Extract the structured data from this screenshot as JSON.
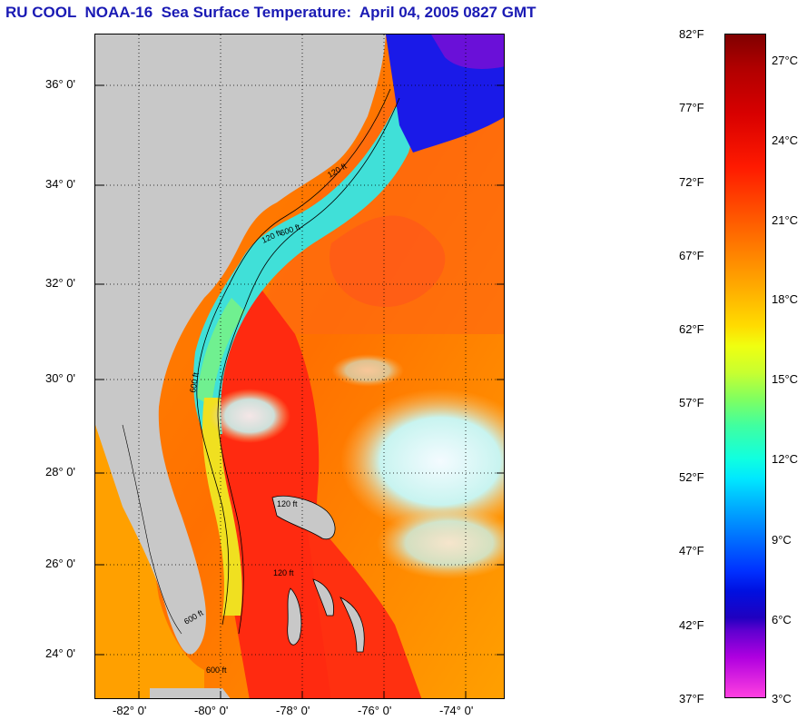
{
  "title": "RU COOL  NOAA-16  Sea Surface Temperature:  April 04, 2005 0827 GMT",
  "lat_labels": [
    "36° 0'",
    "34° 0'",
    "32° 0'",
    "30° 0'",
    "28° 0'",
    "26° 0'",
    "24° 0'"
  ],
  "lon_labels": [
    "-82° 0'",
    "-80° 0'",
    "-78° 0'",
    "-76° 0'",
    "-74° 0'"
  ],
  "contour_labels": [
    "120 ft",
    "600 ft",
    "120 ft",
    "600 ft",
    "120 ft",
    "600 ft",
    "600 ft",
    "120 ft"
  ],
  "colorbar": {
    "fahrenheit": [
      "82°F",
      "77°F",
      "72°F",
      "67°F",
      "62°F",
      "57°F",
      "52°F",
      "47°F",
      "42°F",
      "37°F"
    ],
    "celsius": [
      "27°C",
      "24°C",
      "21°C",
      "18°C",
      "15°C",
      "12°C",
      "9°C",
      "6°C",
      "3°C"
    ]
  },
  "colors": {
    "land": "#c8c8c8",
    "title": "#1a1ab4",
    "warm_water": "#ff3a10",
    "cool_water": "#30e0e8"
  }
}
